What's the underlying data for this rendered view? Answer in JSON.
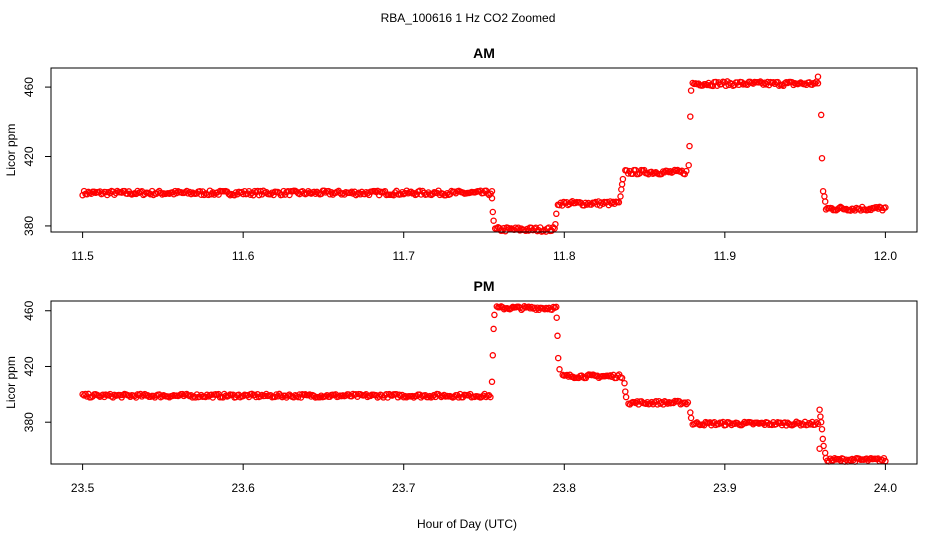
{
  "figure": {
    "title": "RBA_100616  1 Hz CO2 Zoomed",
    "xlabel": "Hour of Day (UTC)"
  },
  "colors": {
    "points": "#ff0000",
    "axis": "#000000"
  },
  "chart_data": [
    {
      "type": "scatter",
      "title": "AM",
      "xlabel": "",
      "ylabel": "Licor ppm",
      "xlim": [
        11.5,
        12.0
      ],
      "ylim": [
        376.5,
        471
      ],
      "xticks": [
        "11.5",
        "11.6",
        "11.7",
        "11.8",
        "11.9",
        "12.0"
      ],
      "yticks": [
        "380",
        "420",
        "460"
      ],
      "marker": "open-circle",
      "series": [
        {
          "segments": [
            {
              "x": [
                11.5,
                11.755
              ],
              "y": 399
            },
            {
              "x": [
                11.757,
                11.794
              ],
              "y": 378
            },
            {
              "x": [
                11.796,
                11.834
              ],
              "y": 393
            },
            {
              "x": [
                11.838,
                11.876
              ],
              "y": 411
            },
            {
              "x": [
                11.88,
                11.958
              ],
              "y": 462
            },
            {
              "x": [
                11.963,
                12.0
              ],
              "y": 390
            }
          ],
          "transition_points": [
            {
              "x": 11.755,
              "y": 396
            },
            {
              "x": 11.7555,
              "y": 388
            },
            {
              "x": 11.756,
              "y": 383
            },
            {
              "x": 11.7945,
              "y": 381
            },
            {
              "x": 11.795,
              "y": 387
            },
            {
              "x": 11.835,
              "y": 397
            },
            {
              "x": 11.8355,
              "y": 401
            },
            {
              "x": 11.836,
              "y": 404
            },
            {
              "x": 11.8365,
              "y": 407
            },
            {
              "x": 11.8775,
              "y": 415
            },
            {
              "x": 11.878,
              "y": 426
            },
            {
              "x": 11.8785,
              "y": 443
            },
            {
              "x": 11.879,
              "y": 458
            },
            {
              "x": 11.958,
              "y": 466
            },
            {
              "x": 11.96,
              "y": 444
            },
            {
              "x": 11.9605,
              "y": 419
            },
            {
              "x": 11.9612,
              "y": 400
            },
            {
              "x": 11.962,
              "y": 397
            },
            {
              "x": 11.9625,
              "y": 394
            }
          ]
        }
      ]
    },
    {
      "type": "scatter",
      "title": "PM",
      "xlabel": "Hour of Day (UTC)",
      "ylabel": "Licor ppm",
      "xlim": [
        23.5,
        24.0
      ],
      "ylim": [
        350,
        467
      ],
      "xticks": [
        "23.5",
        "23.6",
        "23.7",
        "23.8",
        "23.9",
        "24.0"
      ],
      "yticks": [
        "380",
        "420",
        "460"
      ],
      "marker": "open-circle",
      "series": [
        {
          "segments": [
            {
              "x": [
                23.5,
                23.754
              ],
              "y": 399
            },
            {
              "x": [
                23.758,
                23.795
              ],
              "y": 462
            },
            {
              "x": [
                23.799,
                23.836
              ],
              "y": 413
            },
            {
              "x": [
                23.84,
                23.877
              ],
              "y": 394
            },
            {
              "x": [
                23.88,
                23.958
              ],
              "y": 379
            },
            {
              "x": [
                23.963,
                24.0
              ],
              "y": 353
            }
          ],
          "transition_points": [
            {
              "x": 23.755,
              "y": 409
            },
            {
              "x": 23.7555,
              "y": 428
            },
            {
              "x": 23.756,
              "y": 447
            },
            {
              "x": 23.7565,
              "y": 457
            },
            {
              "x": 23.7953,
              "y": 455
            },
            {
              "x": 23.7958,
              "y": 442
            },
            {
              "x": 23.7962,
              "y": 426
            },
            {
              "x": 23.797,
              "y": 418
            },
            {
              "x": 23.8375,
              "y": 408
            },
            {
              "x": 23.838,
              "y": 402
            },
            {
              "x": 23.8385,
              "y": 398
            },
            {
              "x": 23.8785,
              "y": 387
            },
            {
              "x": 23.879,
              "y": 383
            },
            {
              "x": 23.959,
              "y": 389
            },
            {
              "x": 23.9595,
              "y": 384
            },
            {
              "x": 23.96,
              "y": 380
            },
            {
              "x": 23.9605,
              "y": 375
            },
            {
              "x": 23.961,
              "y": 368
            },
            {
              "x": 23.9615,
              "y": 363
            },
            {
              "x": 23.9625,
              "y": 358
            },
            {
              "x": 23.959,
              "y": 361
            }
          ]
        }
      ]
    }
  ]
}
